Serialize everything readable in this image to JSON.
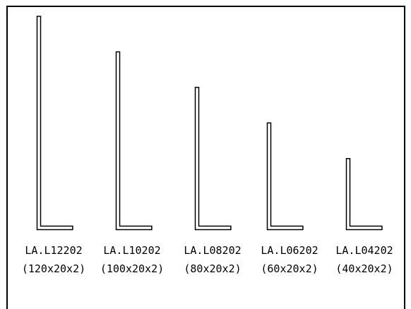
{
  "colors": {
    "stroke": "#000000",
    "background": "#ffffff"
  },
  "profiles": [
    {
      "code": "LA.L12202",
      "dims": "(120x20x2)",
      "height_mm": 120,
      "width_mm": 20,
      "thickness_mm": 2
    },
    {
      "code": "LA.L10202",
      "dims": "(100x20x2)",
      "height_mm": 100,
      "width_mm": 20,
      "thickness_mm": 2
    },
    {
      "code": "LA.L08202",
      "dims": "(80x20x2)",
      "height_mm": 80,
      "width_mm": 20,
      "thickness_mm": 2
    },
    {
      "code": "LA.L06202",
      "dims": "(60x20x2)",
      "height_mm": 60,
      "width_mm": 20,
      "thickness_mm": 2
    },
    {
      "code": "LA.L04202",
      "dims": "(40x20x2)",
      "height_mm": 40,
      "width_mm": 20,
      "thickness_mm": 2
    }
  ]
}
